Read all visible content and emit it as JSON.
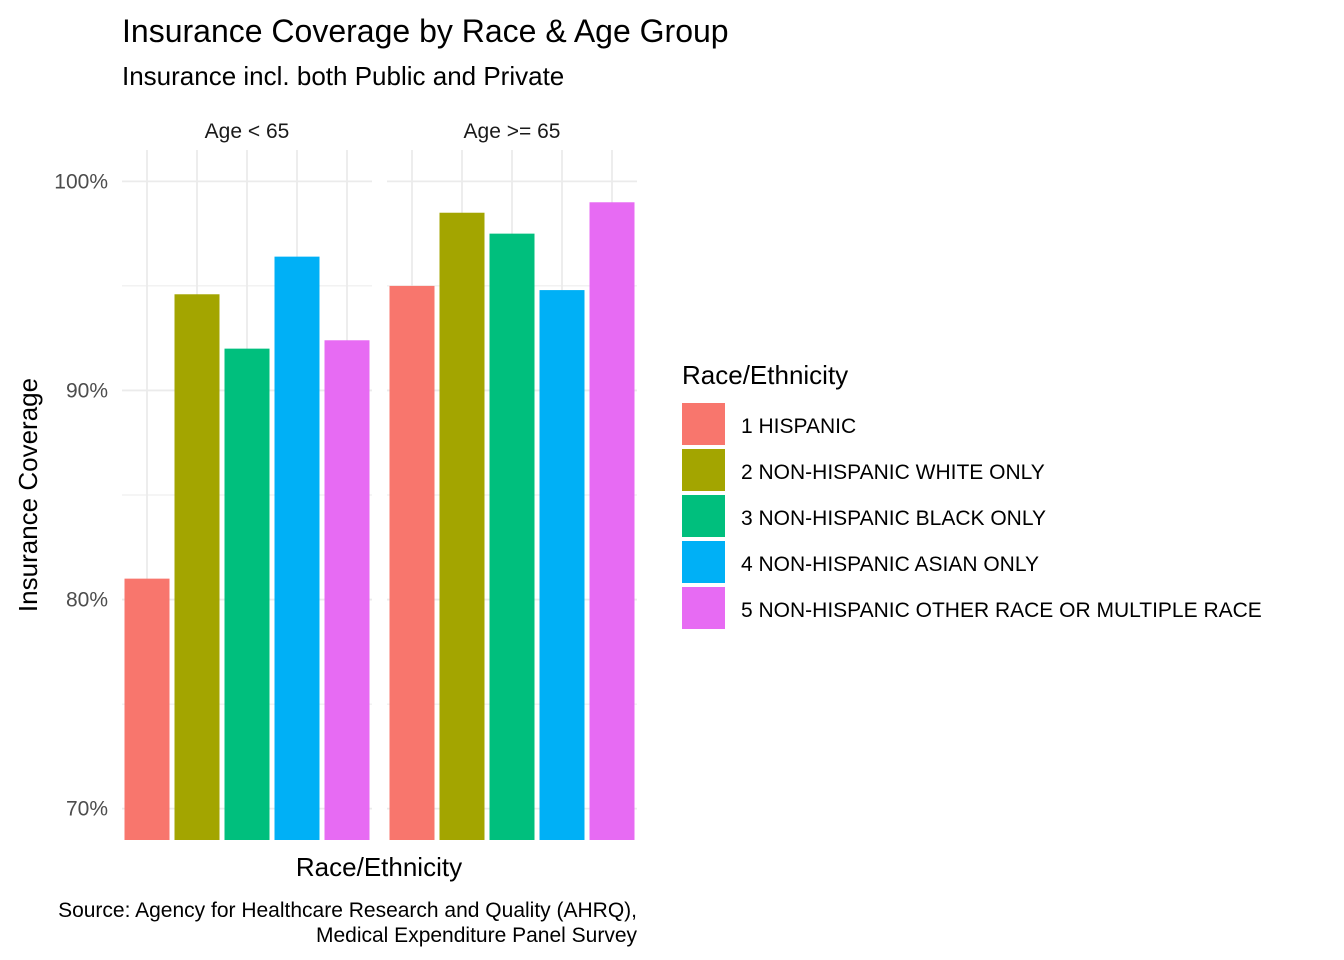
{
  "chart_data": {
    "type": "bar",
    "title": "Insurance Coverage by Race & Age Group",
    "subtitle": "Insurance incl. both Public and Private",
    "xlabel": "Race/Ethnicity",
    "ylabel": "Insurance Coverage",
    "ylim": [
      68.5,
      101.5
    ],
    "yticks": [
      70,
      80,
      90,
      100
    ],
    "ytick_labels": [
      "70%",
      "80%",
      "90%",
      "100%"
    ],
    "y_minor_ticks": [
      75,
      85,
      95
    ],
    "grid": true,
    "legend_position": "right",
    "legend_title": "Race/Ethnicity",
    "series": [
      {
        "name": "1 HISPANIC",
        "color": "#F8766D"
      },
      {
        "name": "2 NON-HISPANIC WHITE ONLY",
        "color": "#A3A500"
      },
      {
        "name": "3 NON-HISPANIC BLACK ONLY",
        "color": "#00BF7D"
      },
      {
        "name": "4 NON-HISPANIC ASIAN ONLY",
        "color": "#00B0F6"
      },
      {
        "name": "5 NON-HISPANIC OTHER RACE OR MULTIPLE RACE",
        "color": "#E76BF3"
      }
    ],
    "facets": [
      {
        "label": "Age < 65",
        "values": [
          81.0,
          94.6,
          92.0,
          96.4,
          92.4
        ]
      },
      {
        "label": "Age >= 65",
        "values": [
          95.0,
          98.5,
          97.5,
          94.8,
          99.0
        ]
      }
    ],
    "caption": [
      "Source: Agency for Healthcare Research and Quality (AHRQ),",
      "Medical Expenditure Panel Survey"
    ]
  }
}
